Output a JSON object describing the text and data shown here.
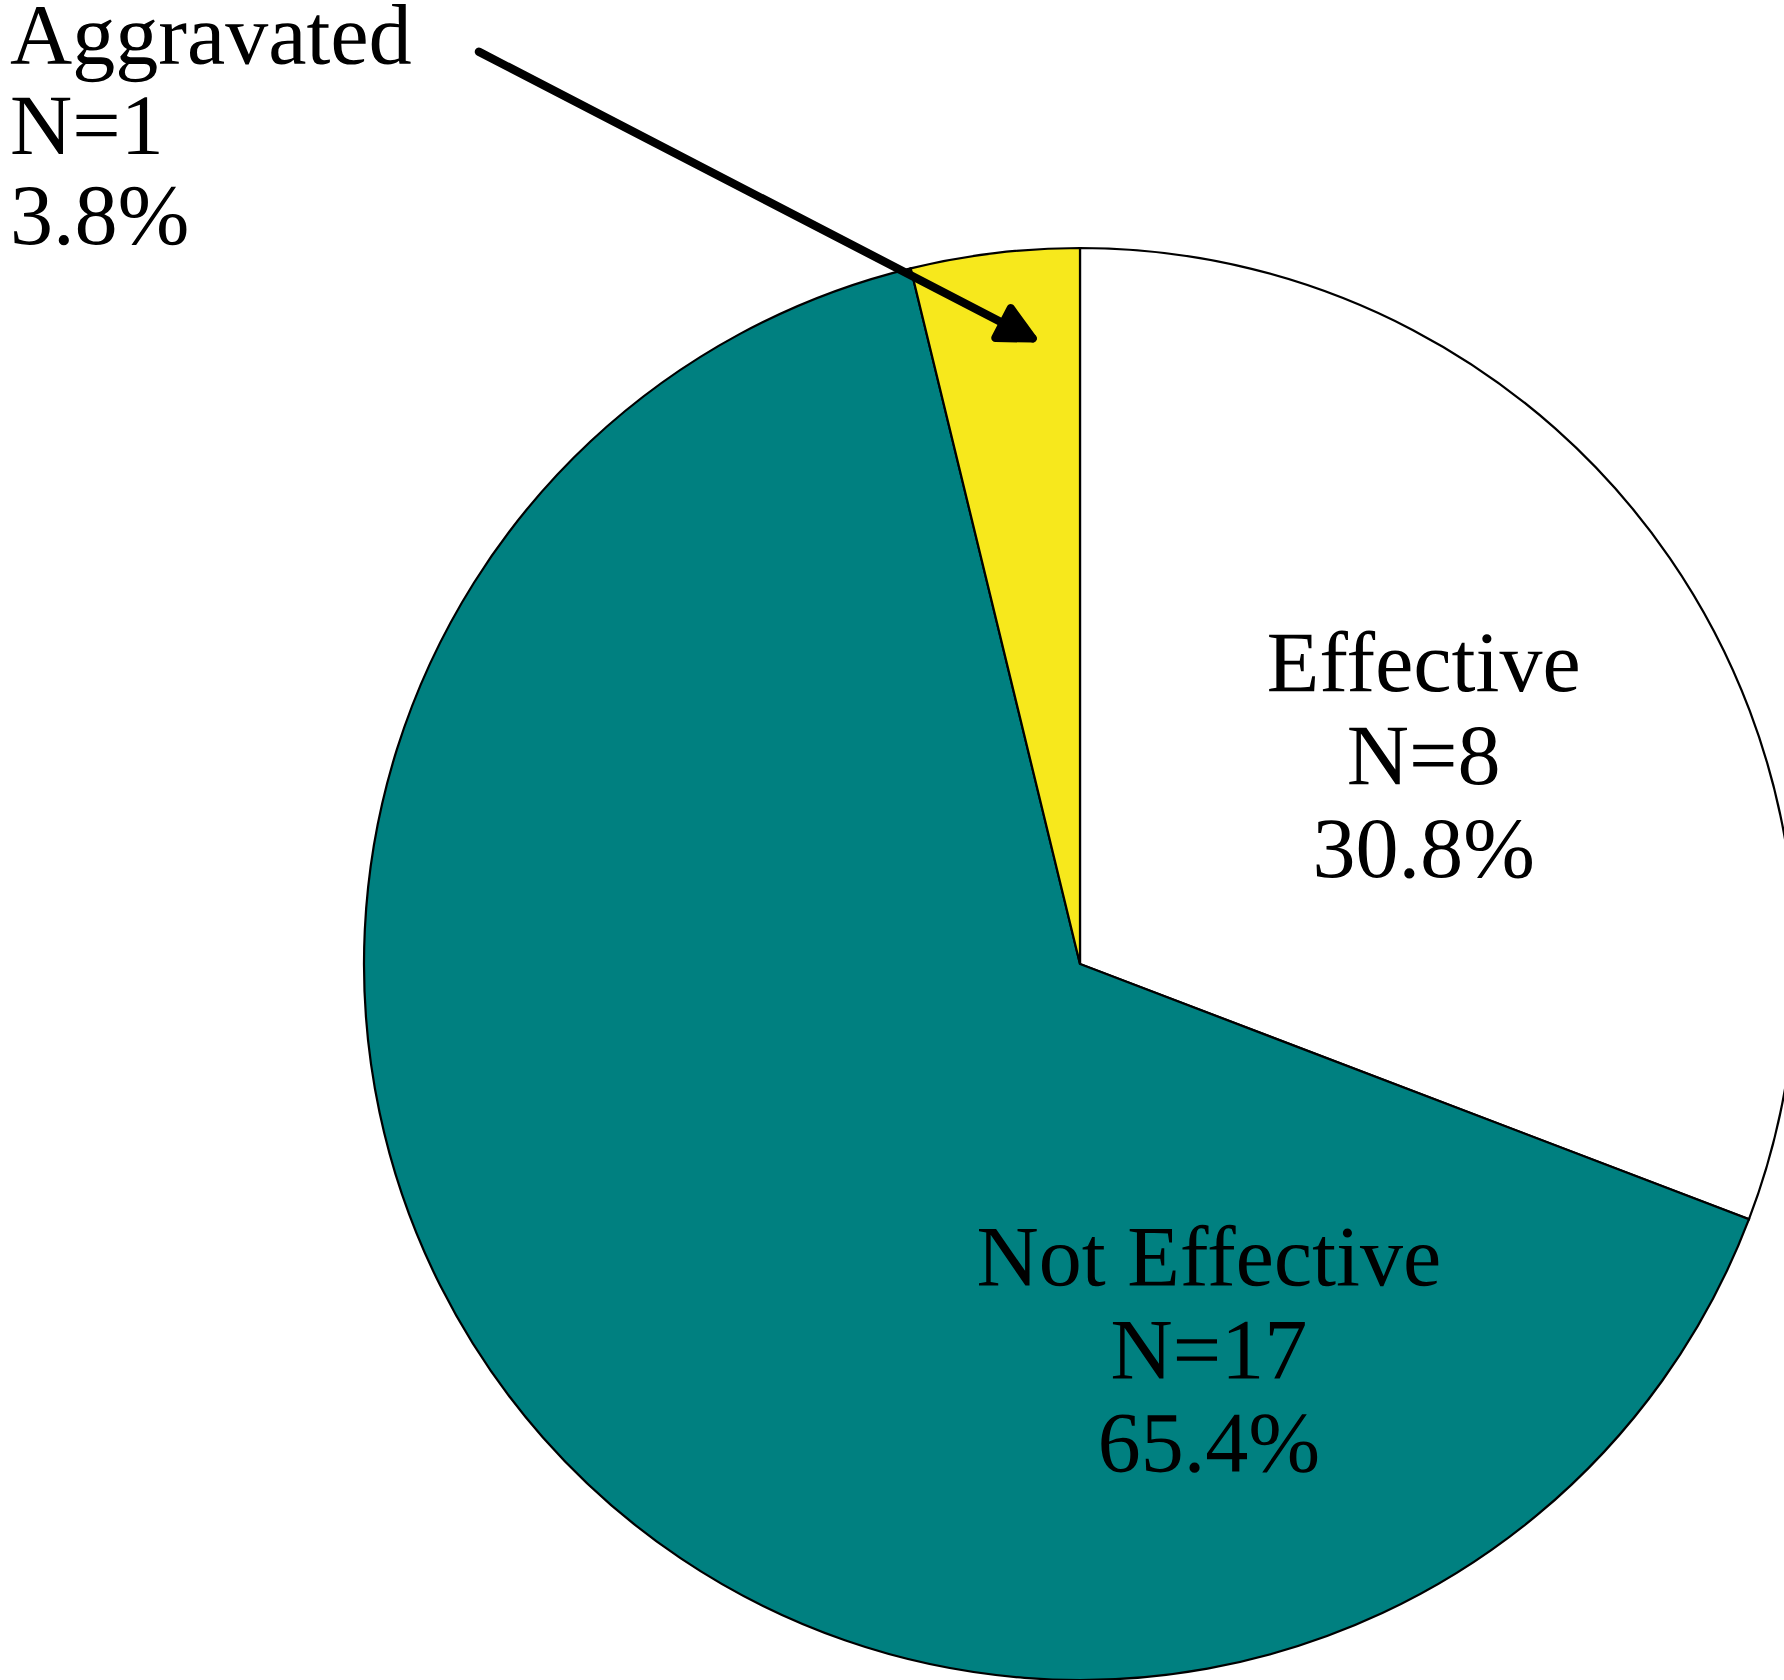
{
  "chart_data": {
    "type": "pie",
    "categories": [
      "Effective",
      "Not Effective",
      "Aggravated"
    ],
    "values": [
      30.8,
      65.4,
      3.8
    ],
    "value_labels": [
      "N=8\n30.8%",
      "N=17\n65.4%",
      "N=1\n3.8%"
    ],
    "colors": [
      "#ffffff",
      "#008080",
      "#f7e81c"
    ],
    "legend": false
  }
}
